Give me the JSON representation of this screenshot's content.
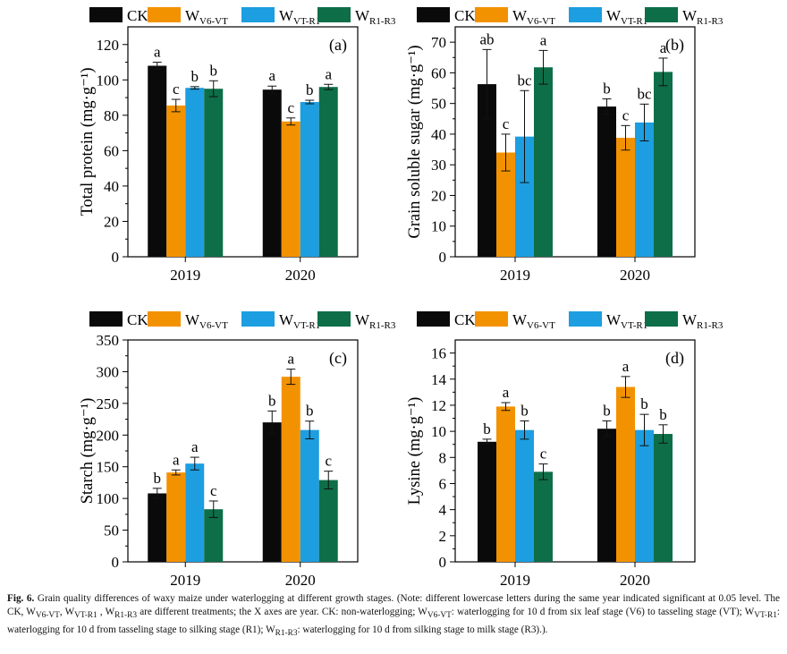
{
  "chart_data": [
    {
      "id": "a",
      "type": "bar",
      "panel_label": "(a)",
      "ylabel": "Total protein (mg·g⁻¹)",
      "ylim": [
        0,
        130
      ],
      "yticks": [
        0,
        20,
        40,
        60,
        80,
        100,
        120
      ],
      "categories": [
        "2019",
        "2020"
      ],
      "series": [
        {
          "name": "CK",
          "values": [
            108,
            94.5
          ],
          "errors": [
            2,
            2
          ],
          "letters": [
            "a",
            "a"
          ]
        },
        {
          "name": "W_V6-VT",
          "values": [
            85.5,
            76.5
          ],
          "errors": [
            3.5,
            2
          ],
          "letters": [
            "c",
            "c"
          ]
        },
        {
          "name": "W_VT-R1",
          "values": [
            95.5,
            87.5
          ],
          "errors": [
            0.7,
            1
          ],
          "letters": [
            "b",
            "b"
          ]
        },
        {
          "name": "W_R1-R3",
          "values": [
            95,
            96
          ],
          "errors": [
            4.5,
            1.5
          ],
          "letters": [
            "b",
            "a"
          ]
        }
      ],
      "grid": false,
      "legend_position": "top"
    },
    {
      "id": "b",
      "type": "bar",
      "panel_label": "(b)",
      "ylabel": "Grain soluble sugar (mg·g⁻¹)",
      "ylim": [
        0,
        75
      ],
      "yticks": [
        0,
        10,
        20,
        30,
        40,
        50,
        60,
        70
      ],
      "categories": [
        "2019",
        "2020"
      ],
      "series": [
        {
          "name": "CK",
          "values": [
            56.3,
            49
          ],
          "errors": [
            11.3,
            2.5
          ],
          "letters": [
            "ab",
            "b"
          ]
        },
        {
          "name": "W_V6-VT",
          "values": [
            34,
            38.8
          ],
          "errors": [
            6,
            4
          ],
          "letters": [
            "c",
            "c"
          ]
        },
        {
          "name": "W_VT-R1",
          "values": [
            39.2,
            43.8
          ],
          "errors": [
            15,
            6
          ],
          "letters": [
            "bc",
            "bc"
          ]
        },
        {
          "name": "W_R1-R3",
          "values": [
            61.8,
            60.3
          ],
          "errors": [
            5.5,
            4.5
          ],
          "letters": [
            "a",
            "a"
          ]
        }
      ],
      "grid": false,
      "legend_position": "top"
    },
    {
      "id": "c",
      "type": "bar",
      "panel_label": "(c)",
      "ylabel": "Starch (mg·g⁻¹)",
      "ylim": [
        0,
        350
      ],
      "yticks": [
        0,
        50,
        100,
        150,
        200,
        250,
        300,
        350
      ],
      "categories": [
        "2019",
        "2020"
      ],
      "series": [
        {
          "name": "CK",
          "values": [
            108,
            220
          ],
          "errors": [
            8,
            18
          ],
          "letters": [
            "b",
            "b"
          ]
        },
        {
          "name": "W_V6-VT",
          "values": [
            141,
            292
          ],
          "errors": [
            4,
            12
          ],
          "letters": [
            "a",
            "a"
          ]
        },
        {
          "name": "W_VT-R1",
          "values": [
            155,
            208
          ],
          "errors": [
            10,
            14
          ],
          "letters": [
            "a",
            "b"
          ]
        },
        {
          "name": "W_R1-R3",
          "values": [
            83,
            129
          ],
          "errors": [
            13,
            14
          ],
          "letters": [
            "c",
            "c"
          ]
        }
      ],
      "grid": false,
      "legend_position": "top"
    },
    {
      "id": "d",
      "type": "bar",
      "panel_label": "(d)",
      "ylabel": "Lysine (mg·g⁻¹)",
      "ylim": [
        0,
        17
      ],
      "yticks": [
        0,
        2,
        4,
        6,
        8,
        10,
        12,
        14,
        16
      ],
      "categories": [
        "2019",
        "2020"
      ],
      "series": [
        {
          "name": "CK",
          "values": [
            9.2,
            10.2
          ],
          "errors": [
            0.2,
            0.6
          ],
          "letters": [
            "b",
            "b"
          ]
        },
        {
          "name": "W_V6-VT",
          "values": [
            11.9,
            13.4
          ],
          "errors": [
            0.3,
            0.8
          ],
          "letters": [
            "a",
            "a"
          ]
        },
        {
          "name": "W_VT-R1",
          "values": [
            10.1,
            10.1
          ],
          "errors": [
            0.7,
            1.2
          ],
          "letters": [
            "b",
            "b"
          ]
        },
        {
          "name": "W_R1-R3",
          "values": [
            6.9,
            9.8
          ],
          "errors": [
            0.6,
            0.7
          ],
          "letters": [
            "c",
            "b"
          ]
        }
      ],
      "grid": false,
      "legend_position": "top"
    }
  ],
  "colors": {
    "CK": "#0a0a0a",
    "W_V6-VT": "#f39200",
    "W_VT-R1": "#1c9ee0",
    "W_R1-R3": "#0d6e48"
  },
  "legend": [
    {
      "key": "CK",
      "main": "CK",
      "sub": ""
    },
    {
      "key": "W_V6-VT",
      "main": "W",
      "sub": "V6-VT"
    },
    {
      "key": "W_VT-R1",
      "main": "W",
      "sub": "VT-R1"
    },
    {
      "key": "W_R1-R3",
      "main": "W",
      "sub": "R1-R3"
    }
  ],
  "caption": {
    "fig_label": "Fig. 6.",
    "text": " Grain quality differences of waxy maize under waterlogging at different growth stages. (Note: different lowercase letters during the same year indicated significant at 0.05 level. The CK, W",
    "s1": "V6-VT",
    "t2": ", W",
    "s2": "VT-R1",
    "t3": " , W",
    "s3": "R1-R3",
    "t4": " are different treatments; the X axes are year. CK: non-waterlogging; W",
    "s4": "V6-VT",
    "t5": ": waterlogging for 10 d from six leaf stage (V6) to tasseling stage (VT); W",
    "s5": "VT-R1",
    "t6": ": waterlogging for 10 d from tasseling stage to silking stage (R1); W",
    "s6": "R1-R3",
    "t7": ": waterlogging for 10 d from silking stage to milk stage (R3).)."
  }
}
